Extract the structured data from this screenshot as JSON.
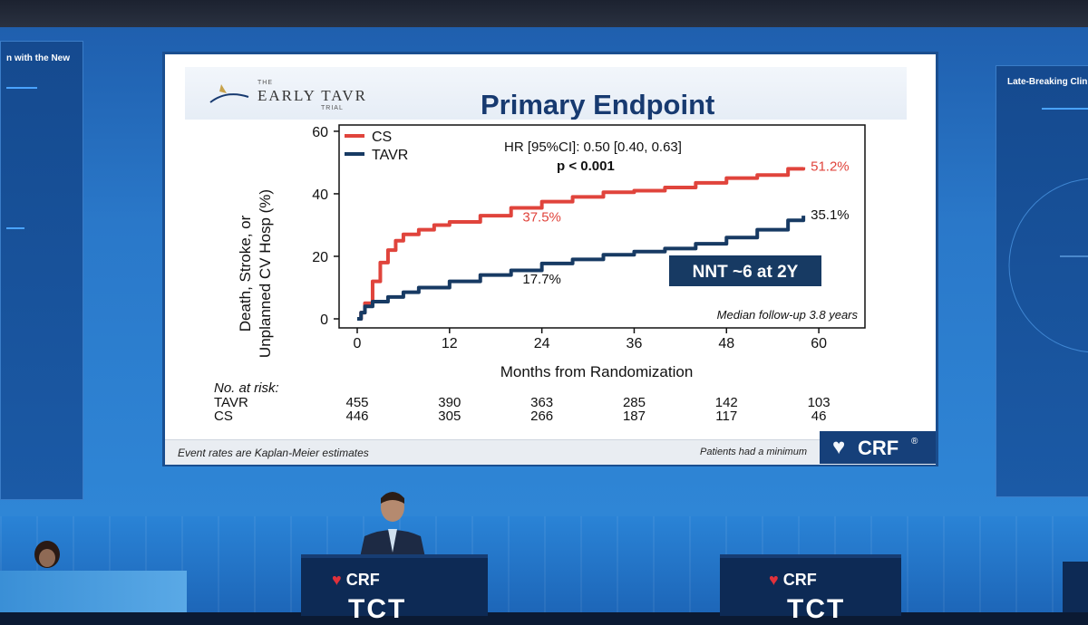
{
  "side_left": {
    "title": "n with the New"
  },
  "side_right": {
    "title": "Late-Breaking Clini"
  },
  "slide": {
    "logo": {
      "the": "THE",
      "name": "EARLY TAVR",
      "trial": "TRIAL"
    },
    "title": "Primary Endpoint",
    "hr_text": "HR [95%CI]: 0.50 [0.40, 0.63]",
    "p_text": "p < 0.001",
    "nnt": "NNT ~6 at 2Y",
    "median_followup": "Median follow-up 3.8 years",
    "risk_table": {
      "header": "No. at risk:",
      "rows": [
        {
          "label": "TAVR",
          "values": [
            "455",
            "390",
            "363",
            "285",
            "142",
            "103"
          ]
        },
        {
          "label": "CS",
          "values": [
            "446",
            "305",
            "266",
            "187",
            "117",
            "46"
          ]
        }
      ]
    },
    "footnote_left": "Event rates are Kaplan-Meier estimates",
    "footnote_right": "Patients had a minimum",
    "badge": "CRF",
    "badge_reg": "®"
  },
  "chart_data": {
    "type": "line",
    "ylabel_line1": "Death, Stroke, or",
    "ylabel_line2": "Unplanned CV Hosp (%)",
    "xlabel": "Months from Randomization",
    "xticks": [
      0,
      12,
      24,
      36,
      48,
      60
    ],
    "yticks": [
      0,
      20,
      40,
      60
    ],
    "xlim": [
      0,
      66
    ],
    "ylim": [
      0,
      62
    ],
    "series": [
      {
        "name": "CS",
        "color": "#e0443c",
        "x": [
          0,
          0.5,
          1,
          2,
          3,
          4,
          5,
          6,
          8,
          10,
          12,
          16,
          20,
          24,
          28,
          32,
          36,
          40,
          44,
          48,
          52,
          56,
          58
        ],
        "y": [
          0,
          2,
          5,
          12,
          18,
          22,
          25,
          27,
          28.5,
          30,
          31,
          33,
          35.5,
          37.5,
          39,
          40.5,
          41,
          42,
          43.5,
          45,
          46,
          48,
          48.5
        ],
        "end_label": "51.2%",
        "mid_label": "37.5%",
        "mid_label_at": [
          24,
          37.5
        ]
      },
      {
        "name": "TAVR",
        "color": "#173a63",
        "x": [
          0,
          0.5,
          1,
          2,
          4,
          6,
          8,
          12,
          16,
          20,
          24,
          28,
          32,
          36,
          40,
          44,
          48,
          52,
          56,
          58
        ],
        "y": [
          0,
          2,
          4,
          5.5,
          7,
          8.5,
          10,
          12,
          14,
          15.5,
          17.7,
          19,
          20.5,
          21.5,
          22.5,
          24,
          26,
          28.5,
          31.5,
          33
        ],
        "end_label": "35.1%",
        "mid_label": "17.7%",
        "mid_label_at": [
          24,
          17.7
        ]
      }
    ]
  },
  "stage": {
    "podium_brand": "CRF",
    "podium_event": "TCT"
  }
}
